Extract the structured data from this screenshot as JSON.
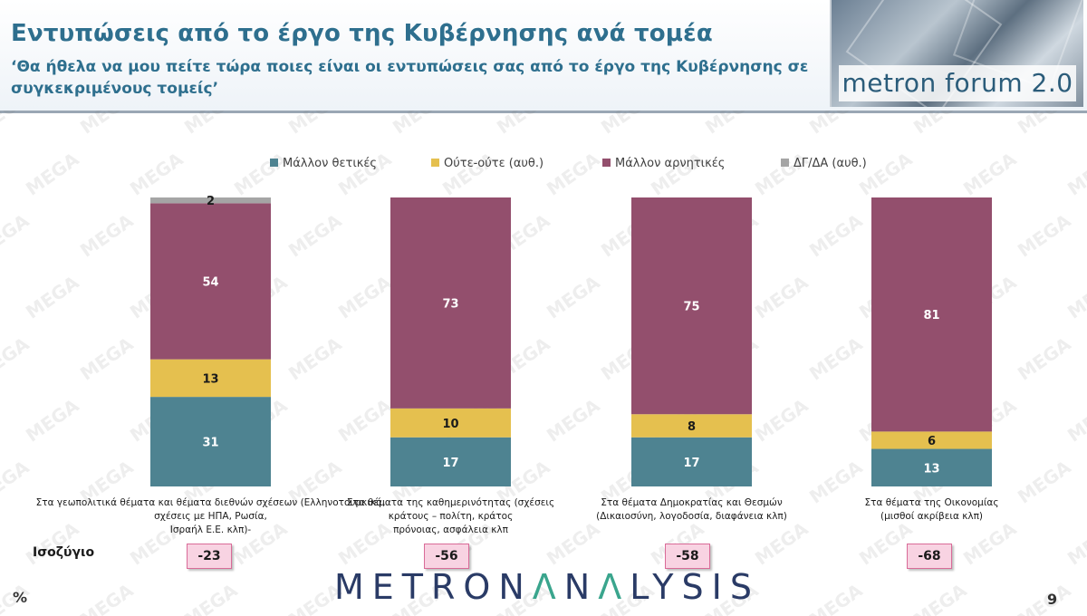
{
  "header": {
    "title": "Εντυπώσεις από το έργο της Κυβέρνησης ανά τομέα",
    "subtitle": "‘Θα ήθελα να μου πείτε τώρα ποιες είναι οι εντυπώσεις σας από το έργο της Κυβέρνησης σε συγκεκριμένους τομείς’",
    "logo_text": "metron forum 2.0"
  },
  "chart_data": {
    "type": "bar",
    "stacked": true,
    "categories": [
      "Στα γεωπολιτικά θέματα και θέματα διεθνών σχέσεων (Ελληνοτουρκικά, σχέσεις με ΗΠΑ, Ρωσία, Ισραήλ Ε.Ε. κλπ)-",
      "Στα θέματα της καθημερινότητας (σχέσεις κράτους – πολίτη, κράτος πρόνοιας, ασφάλεια κλπ",
      "Στα θέματα Δημοκρατίας και Θεσμών (Δικαιοσύνη, λογοδοσία, διαφάνεια κλπ)",
      "Στα θέματα της Οικονομίας (μισθοί ακρίβεια κλπ)"
    ],
    "series": [
      {
        "name": "Μάλλον θετικές",
        "color": "#4e8391",
        "values": [
          31,
          17,
          17,
          13
        ],
        "labels": [
          "31",
          "17",
          "17",
          "13"
        ]
      },
      {
        "name": "Ούτε-ούτε  (αυθ.)",
        "color": "#e5c04f",
        "values": [
          13,
          10,
          8,
          6
        ],
        "labels": [
          "13",
          "10",
          "8",
          "6"
        ]
      },
      {
        "name": "Μάλλον αρνητικές",
        "color": "#934f6d",
        "values": [
          54,
          73,
          75,
          81
        ],
        "labels": [
          "54",
          "73",
          "75",
          "81"
        ]
      },
      {
        "name": "ΔΓ/ΔΑ (αυθ.)",
        "color": "#a5a5a5",
        "values": [
          2,
          0,
          0,
          0
        ],
        "labels": [
          "2",
          "",
          "",
          ""
        ]
      }
    ],
    "ylim": [
      0,
      100
    ],
    "legend_position": "top",
    "grid": false
  },
  "balance": {
    "label": "Ισοζύγιο",
    "values": [
      "-23",
      "-56",
      "-58",
      "-68"
    ]
  },
  "footer": {
    "brand_part1": "METRON",
    "brand_accent1": "Λ",
    "brand_part2": "N",
    "brand_accent2": "Λ",
    "brand_part3": "LYSIS",
    "percent_sign": "%",
    "page_number": "9"
  },
  "watermark_text": "MEGA"
}
